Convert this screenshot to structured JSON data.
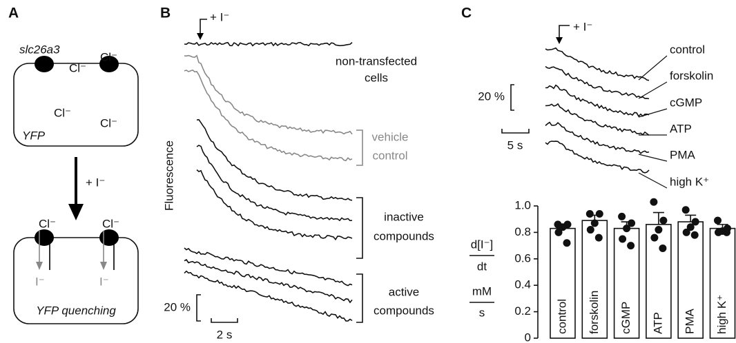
{
  "panel_a": {
    "label": "A",
    "gene": "slc26a3",
    "ions_outside_top": [
      "Cl⁻",
      "Cl⁻"
    ],
    "ions_inside_top": [
      "Cl⁻",
      "Cl⁻"
    ],
    "cell_top": "YFP",
    "arrow": "+ I⁻",
    "ions_outside_bottom": [
      "Cl⁻",
      "Cl⁻"
    ],
    "ions_inside_bottom": [
      "I⁻",
      "I⁻"
    ],
    "cell_bottom": "YFP quenching"
  },
  "panel_b": {
    "label": "B",
    "stimulus": "+ I⁻",
    "y_label": "Fluorescence",
    "groups": [
      {
        "lines": [
          "non-transfected",
          "cells"
        ]
      },
      {
        "lines": [
          "vehicle",
          "control"
        ]
      },
      {
        "lines": [
          "inactive",
          "compounds"
        ]
      },
      {
        "lines": [
          "active",
          "compounds"
        ]
      }
    ],
    "scale_y": "20 %",
    "scale_x": "2 s"
  },
  "panel_c": {
    "label": "C",
    "stimulus": "+ I⁻",
    "traces": [
      "control",
      "forskolin",
      "cGMP",
      "ATP",
      "PMA",
      "high K⁺"
    ],
    "scale_y": "20 %",
    "scale_x": "5 s"
  },
  "chart_data": {
    "type": "bar",
    "y_label": [
      "d[I⁻]",
      "dt",
      "mM",
      "s"
    ],
    "categories": [
      "control",
      "forskolin",
      "cGMP",
      "ATP",
      "PMA",
      "high K⁺"
    ],
    "values": [
      0.83,
      0.89,
      0.83,
      0.86,
      0.88,
      0.83
    ],
    "errors": [
      0.03,
      0.04,
      0.05,
      0.09,
      0.05,
      0.03
    ],
    "points": [
      [
        0.86,
        0.86,
        0.84,
        0.8,
        0.72
      ],
      [
        0.94,
        0.94,
        0.87,
        0.82,
        0.76
      ],
      [
        0.92,
        0.87,
        0.83,
        0.75,
        0.7
      ],
      [
        1.03,
        0.89,
        0.82,
        0.76,
        0.68
      ],
      [
        0.97,
        0.88,
        0.84,
        0.8,
        0.78
      ],
      [
        0.89,
        0.83,
        0.81,
        0.8,
        0.8
      ]
    ],
    "color": "#ffffff",
    "ylim": [
      0,
      1
    ],
    "yticks": [
      0,
      0.2,
      0.4,
      0.6,
      0.8,
      {
        "value": 1,
        "label": "1.0"
      }
    ]
  }
}
